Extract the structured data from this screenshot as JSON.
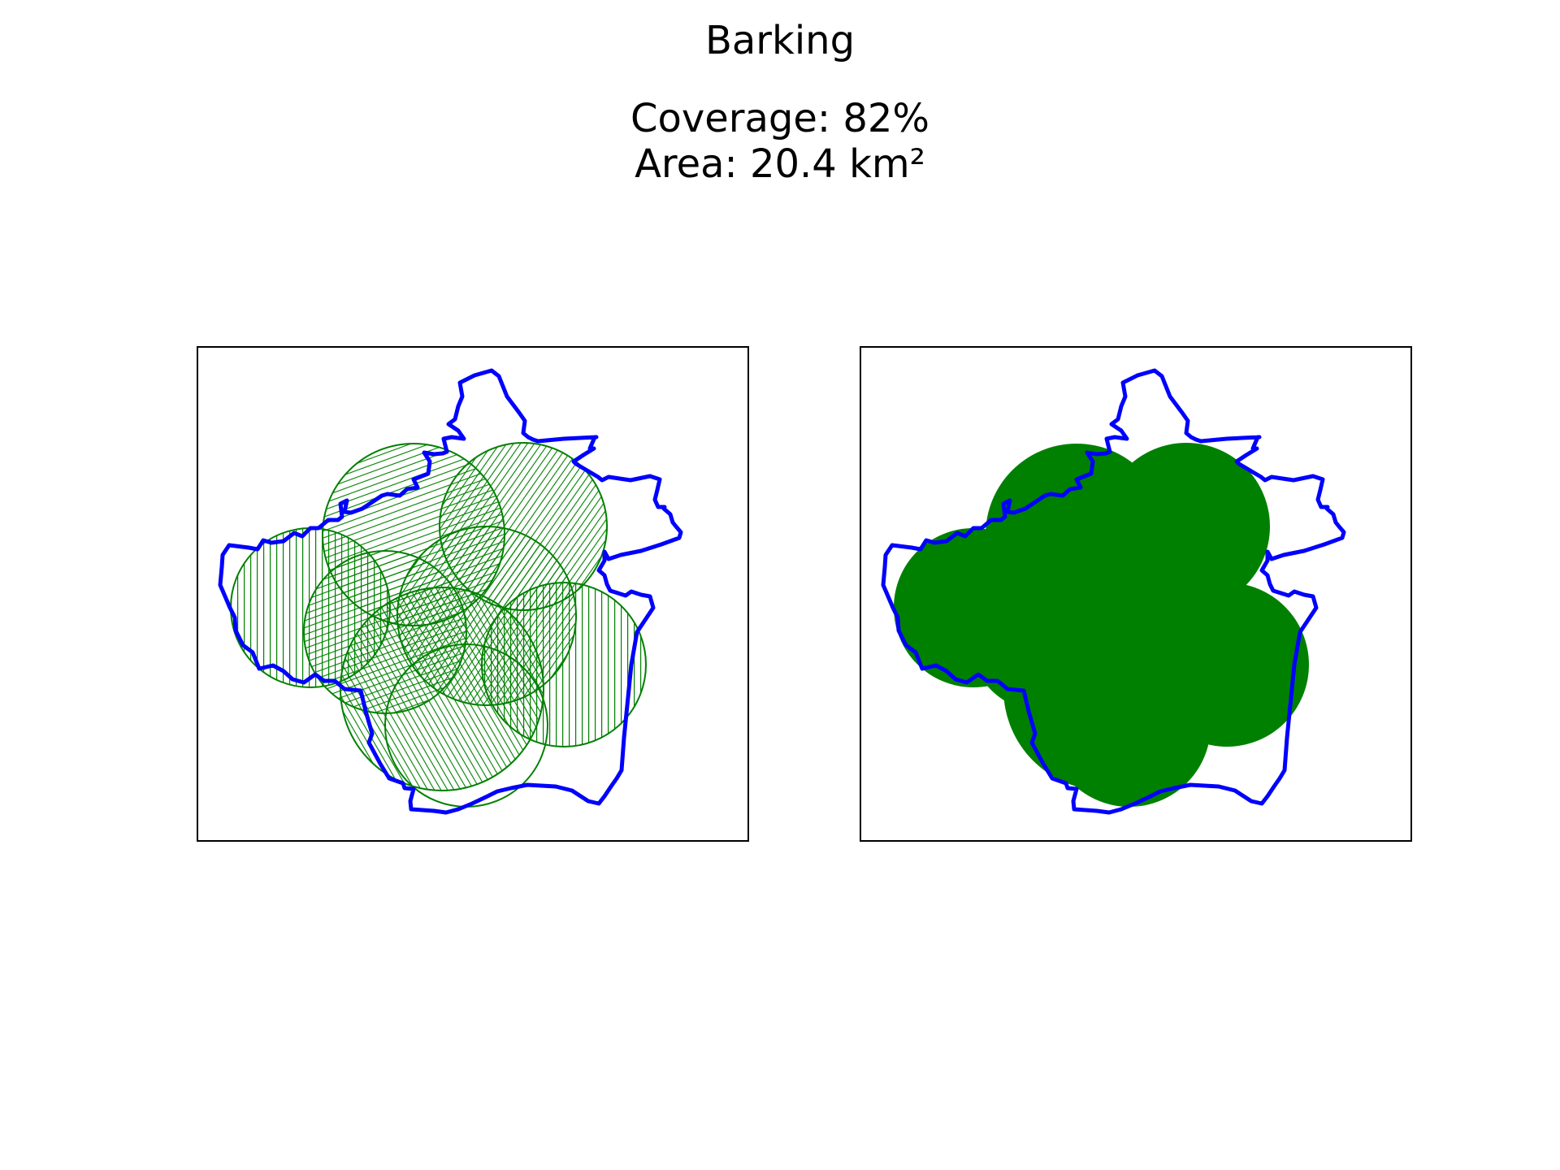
{
  "header": {
    "title": "Barking",
    "coverage_text": "Coverage: 82%",
    "area_text": "Area: 20.4 km²"
  },
  "metrics": {
    "coverage_percent": 82,
    "area_km2": 20.4
  },
  "colors": {
    "boundary": "#0000ff",
    "coverage": "#008000",
    "frame": "#000000",
    "background": "#ffffff"
  },
  "panels": [
    {
      "label": "coverage-circles-outlined"
    },
    {
      "label": "coverage-circles-filled"
    }
  ]
}
